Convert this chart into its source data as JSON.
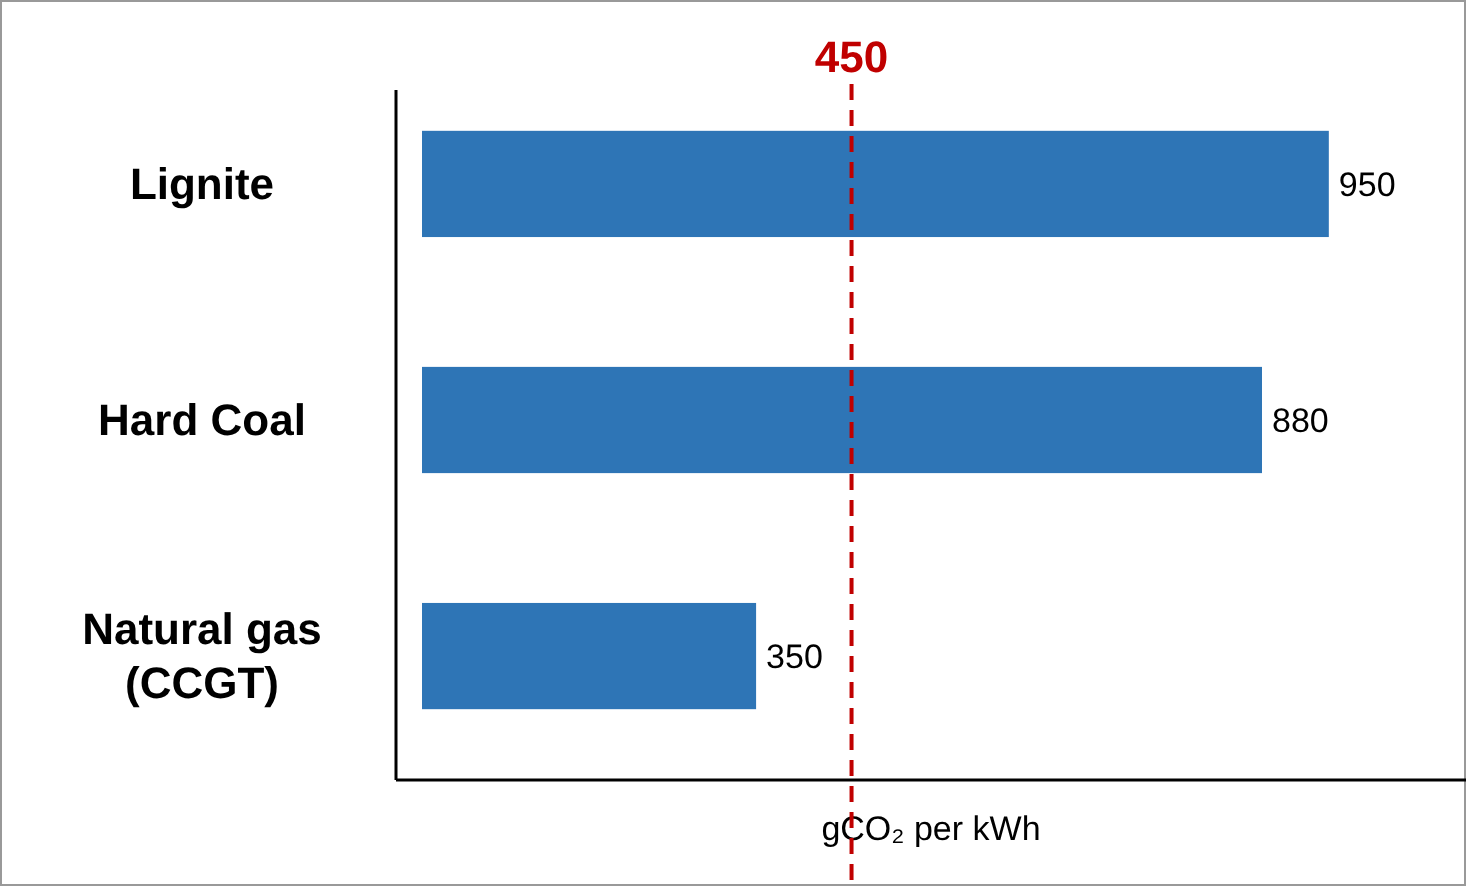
{
  "chart_data": {
    "type": "bar",
    "orientation": "horizontal",
    "categories": [
      "Lignite",
      "Hard Coal",
      "Natural gas (CCGT)"
    ],
    "values": [
      950,
      880,
      350
    ],
    "color": "#2e75b6",
    "data_labels": true,
    "xlabel": "gCO₂ per kWh",
    "xlim": [
      0,
      1100
    ],
    "tick_labels": "y",
    "ref_lines": [
      {
        "axis": "x",
        "value": 450,
        "label": "450",
        "color": "#c00000",
        "line_style": "dashed"
      }
    ]
  }
}
